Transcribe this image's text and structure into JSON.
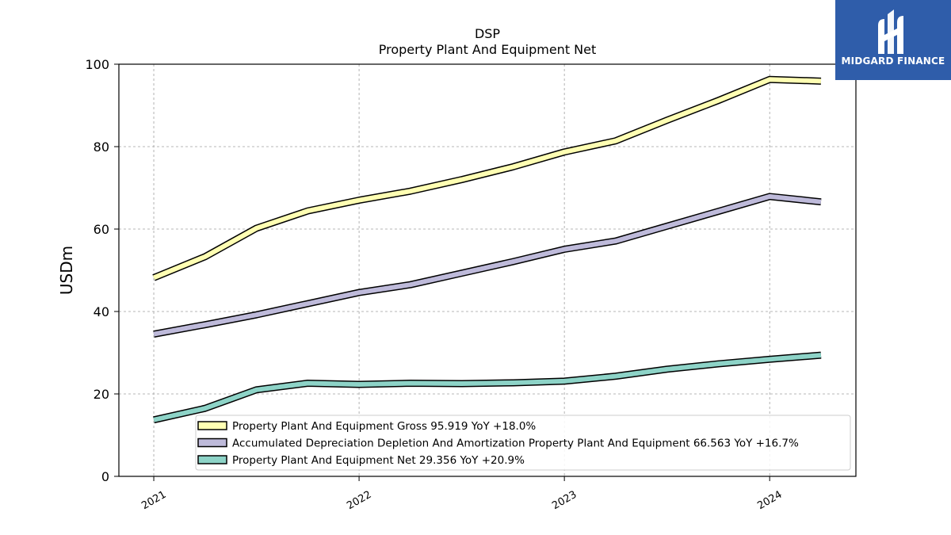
{
  "chart_data": {
    "type": "line",
    "title": "DSP",
    "subtitle": "Property Plant And Equipment Net",
    "xlabel": "",
    "ylabel": "USDm",
    "ylim": [
      0,
      100
    ],
    "yticks": [
      0,
      20,
      40,
      60,
      80,
      100
    ],
    "xticks": [
      {
        "value": 2021.0,
        "label": "2021"
      },
      {
        "value": 2022.0,
        "label": "2022"
      },
      {
        "value": 2023.0,
        "label": "2023"
      },
      {
        "value": 2024.0,
        "label": "2024"
      }
    ],
    "xlim": [
      2020.83,
      2024.42
    ],
    "grid": true,
    "legend_position": "lower-center",
    "x": [
      2021.0,
      2021.25,
      2021.5,
      2021.75,
      2022.0,
      2022.25,
      2022.5,
      2022.75,
      2023.0,
      2023.25,
      2023.5,
      2023.75,
      2024.0,
      2024.25
    ],
    "series": [
      {
        "name": "Property Plant And Equipment Gross  95.919 YoY +18.0%",
        "color": "#ffffb3",
        "values": [
          48.2,
          53.3,
          60.2,
          64.4,
          67.0,
          69.2,
          72.0,
          75.1,
          78.7,
          81.4,
          86.4,
          91.2,
          96.3,
          95.9
        ]
      },
      {
        "name": "Accumulated Depreciation Depletion And Amortization Property Plant And Equipment  66.563 YoY +16.7%",
        "color": "#bebada",
        "values": [
          34.5,
          36.8,
          39.2,
          41.9,
          44.6,
          46.5,
          49.3,
          52.1,
          55.1,
          57.1,
          60.7,
          64.3,
          67.9,
          66.6
        ]
      },
      {
        "name": "Property Plant And Equipment Net  29.356 YoY +20.9%",
        "color": "#8dd3c7",
        "values": [
          13.7,
          16.5,
          21.0,
          22.6,
          22.3,
          22.6,
          22.5,
          22.7,
          23.1,
          24.3,
          26.0,
          27.3,
          28.4,
          29.4
        ]
      }
    ]
  },
  "logo": {
    "text": "MIDGARD FINANCE"
  }
}
